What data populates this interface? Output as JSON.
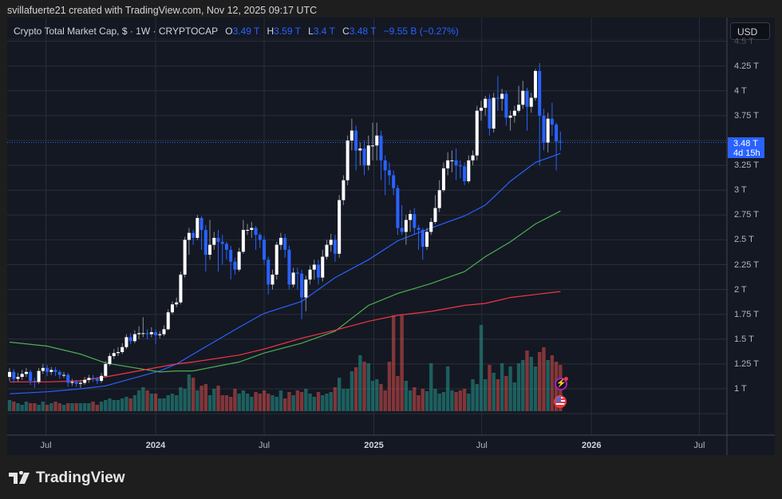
{
  "credit": "svillafuerte21 created with TradingView.com, Nov 12, 2025 09:17 UTC",
  "legend": {
    "symbol": "Crypto Total Market Cap, $ · 1W · CRYPTOCAP",
    "o_label": "O",
    "o": "3.49 T",
    "h_label": "H",
    "h": "3.59 T",
    "l_label": "L",
    "l": "3.4 T",
    "c_label": "C",
    "c": "3.48 T",
    "change": "−9.55 B (−0.27%)"
  },
  "currency_button": "USD",
  "price_tag": {
    "price": "3.48 T",
    "countdown": "4d 15h"
  },
  "logo": "TradingView",
  "colors": {
    "up_body": "#ffffff",
    "up_wick": "#8a8d96",
    "down": "#2962ff",
    "vol_up": "#26a69a",
    "vol_down": "#ef5350",
    "ma_blue": "#2962ff",
    "ma_green": "#4caf50",
    "ma_red": "#f23645",
    "background": "#141823",
    "grid": "#2a2e39"
  },
  "event_icons": [
    "lightning-event-icon",
    "us-flag-event-icon"
  ],
  "chart_data": {
    "type": "candlestick",
    "interval": "1W",
    "first_candle_date": "2023-05-01",
    "ylim": [
      0.6,
      4.6
    ],
    "y_unit": "T",
    "grid": true,
    "yticks": [
      "4.5 T",
      "4.25 T",
      "4 T",
      "3.75 T",
      "3.25 T",
      "3 T",
      "2.75 T",
      "2.5 T",
      "2.25 T",
      "2 T",
      "1.75 T",
      "1.5 T",
      "1.25 T",
      "1 T"
    ],
    "ytick_values": [
      4.5,
      4.25,
      4,
      3.75,
      3.25,
      3,
      2.75,
      2.5,
      2.25,
      2,
      1.75,
      1.5,
      1.25,
      1
    ],
    "xticks": [
      {
        "label": "Jul",
        "date": "2023-07-01",
        "year": false
      },
      {
        "label": "2024",
        "date": "2024-01-01",
        "year": true
      },
      {
        "label": "Jul",
        "date": "2024-07-01",
        "year": false
      },
      {
        "label": "2025",
        "date": "2025-01-01",
        "year": true
      },
      {
        "label": "Jul",
        "date": "2025-07-01",
        "year": false
      },
      {
        "label": "2026",
        "date": "2026-01-01",
        "year": true
      },
      {
        "label": "Jul",
        "date": "2026-07-01",
        "year": false
      }
    ],
    "open": [
      1.12,
      1.17,
      1.1,
      1.12,
      1.15,
      1.17,
      1.08,
      1.07,
      1.18,
      1.21,
      1.17,
      1.19,
      1.17,
      1.14,
      1.14,
      1.06,
      1.07,
      1.05,
      1.06,
      1.09,
      1.11,
      1.1,
      1.08,
      1.13,
      1.25,
      1.33,
      1.36,
      1.37,
      1.42,
      1.52,
      1.48,
      1.55,
      1.56,
      1.56,
      1.55,
      1.57,
      1.54,
      1.55,
      1.6,
      1.77,
      1.85,
      1.87,
      2.15,
      2.5,
      2.57,
      2.52,
      2.72,
      2.6,
      2.35,
      2.45,
      2.52,
      2.48,
      2.46,
      2.4,
      2.28,
      2.2,
      2.38,
      2.6,
      2.6,
      2.62,
      2.55,
      2.5,
      2.3,
      2.05,
      2.15,
      2.45,
      2.52,
      2.4,
      2.05,
      2.17,
      2.16,
      1.92,
      2.1,
      2.2,
      2.25,
      2.12,
      2.33,
      2.45,
      2.5,
      2.36,
      2.9,
      3.1,
      3.5,
      3.6,
      3.4,
      3.42,
      3.25,
      3.45,
      3.45,
      3.55,
      3.3,
      3.2,
      3.15,
      3.02,
      2.62,
      2.58,
      2.7,
      2.76,
      2.62,
      2.6,
      2.43,
      2.58,
      2.68,
      2.82,
      3.0,
      3.22,
      3.3,
      3.3,
      3.25,
      3.24,
      3.09,
      3.3,
      3.35,
      3.8,
      3.83,
      3.92,
      3.62,
      3.93,
      3.92,
      3.97,
      3.73,
      3.75,
      3.8,
      3.86,
      4.0,
      3.84,
      3.93,
      4.2,
      3.75,
      3.48,
      3.72,
      3.66,
      3.49
    ],
    "high": [
      1.21,
      1.2,
      1.16,
      1.19,
      1.21,
      1.19,
      1.11,
      1.21,
      1.25,
      1.24,
      1.22,
      1.22,
      1.19,
      1.17,
      1.16,
      1.1,
      1.09,
      1.09,
      1.12,
      1.14,
      1.14,
      1.12,
      1.16,
      1.28,
      1.36,
      1.4,
      1.42,
      1.46,
      1.55,
      1.56,
      1.59,
      1.63,
      1.72,
      1.6,
      1.62,
      1.6,
      1.58,
      1.64,
      1.8,
      1.88,
      1.92,
      2.18,
      2.53,
      2.62,
      2.6,
      2.75,
      2.74,
      2.65,
      2.7,
      2.58,
      2.6,
      2.55,
      2.48,
      2.44,
      2.32,
      2.42,
      2.7,
      2.66,
      2.68,
      2.64,
      2.57,
      2.54,
      2.33,
      2.2,
      2.48,
      2.57,
      2.56,
      2.44,
      2.22,
      2.22,
      2.2,
      2.14,
      2.24,
      2.3,
      2.3,
      2.4,
      2.5,
      2.56,
      2.55,
      2.95,
      3.15,
      3.55,
      3.72,
      3.65,
      3.48,
      3.5,
      3.55,
      3.68,
      3.68,
      3.6,
      3.35,
      3.28,
      3.2,
      3.05,
      2.85,
      2.75,
      2.8,
      2.82,
      2.65,
      2.62,
      2.62,
      2.72,
      2.95,
      3.1,
      3.28,
      3.38,
      3.4,
      3.42,
      3.3,
      3.28,
      3.35,
      3.4,
      3.85,
      3.9,
      3.95,
      3.97,
      3.98,
      4.15,
      4.02,
      4.0,
      3.8,
      3.85,
      4.05,
      4.1,
      4.03,
      3.98,
      4.22,
      4.28,
      3.82,
      3.78,
      3.88,
      3.68,
      3.59
    ],
    "low": [
      1.08,
      1.06,
      1.07,
      1.09,
      1.12,
      1.04,
      1.01,
      1.05,
      1.15,
      1.13,
      1.14,
      1.13,
      1.1,
      1.11,
      1.02,
      1.03,
      1.02,
      1.01,
      1.04,
      1.06,
      1.07,
      1.05,
      1.06,
      1.12,
      1.23,
      1.3,
      1.33,
      1.35,
      1.4,
      1.45,
      1.46,
      1.5,
      1.52,
      1.5,
      1.52,
      1.45,
      1.51,
      1.53,
      1.59,
      1.75,
      1.82,
      1.85,
      2.12,
      2.35,
      2.45,
      2.5,
      2.4,
      2.18,
      2.3,
      2.4,
      2.18,
      2.25,
      2.3,
      2.1,
      2.15,
      2.18,
      2.36,
      2.55,
      2.52,
      2.4,
      2.42,
      2.25,
      1.95,
      2.0,
      2.1,
      2.4,
      2.32,
      2.0,
      2.02,
      2.0,
      1.7,
      1.78,
      2.05,
      2.1,
      2.05,
      2.08,
      2.3,
      2.38,
      2.28,
      2.32,
      2.85,
      3.05,
      3.4,
      3.2,
      3.25,
      3.15,
      3.2,
      3.3,
      3.3,
      3.1,
      2.95,
      3.05,
      2.95,
      2.55,
      2.55,
      2.45,
      2.58,
      2.55,
      2.4,
      2.3,
      2.4,
      2.55,
      2.66,
      2.78,
      2.98,
      3.15,
      3.18,
      3.1,
      3.12,
      3.05,
      3.07,
      3.25,
      3.3,
      3.7,
      3.75,
      3.55,
      3.58,
      3.8,
      3.8,
      3.65,
      3.6,
      3.68,
      3.78,
      3.82,
      3.6,
      3.78,
      3.9,
      3.25,
      3.4,
      3.38,
      3.55,
      3.2,
      3.4
    ],
    "close": [
      1.17,
      1.1,
      1.12,
      1.15,
      1.17,
      1.08,
      1.07,
      1.18,
      1.21,
      1.17,
      1.19,
      1.17,
      1.14,
      1.14,
      1.06,
      1.07,
      1.05,
      1.06,
      1.09,
      1.11,
      1.1,
      1.08,
      1.13,
      1.25,
      1.33,
      1.36,
      1.37,
      1.42,
      1.52,
      1.48,
      1.55,
      1.56,
      1.56,
      1.55,
      1.57,
      1.54,
      1.55,
      1.6,
      1.77,
      1.85,
      1.87,
      2.15,
      2.5,
      2.57,
      2.52,
      2.72,
      2.6,
      2.35,
      2.45,
      2.52,
      2.48,
      2.46,
      2.4,
      2.28,
      2.2,
      2.38,
      2.6,
      2.6,
      2.62,
      2.55,
      2.5,
      2.3,
      2.05,
      2.15,
      2.45,
      2.52,
      2.4,
      2.05,
      2.17,
      2.16,
      1.92,
      2.1,
      2.2,
      2.25,
      2.12,
      2.33,
      2.45,
      2.5,
      2.36,
      2.9,
      3.1,
      3.5,
      3.6,
      3.4,
      3.42,
      3.25,
      3.45,
      3.45,
      3.55,
      3.3,
      3.2,
      3.15,
      3.02,
      2.62,
      2.58,
      2.7,
      2.76,
      2.62,
      2.6,
      2.43,
      2.58,
      2.68,
      2.82,
      3.0,
      3.22,
      3.3,
      3.3,
      3.25,
      3.24,
      3.09,
      3.3,
      3.35,
      3.8,
      3.83,
      3.92,
      3.62,
      3.93,
      3.92,
      3.97,
      3.73,
      3.75,
      3.8,
      3.86,
      4.0,
      3.84,
      3.93,
      4.2,
      3.75,
      3.48,
      3.72,
      3.66,
      3.49,
      3.48
    ],
    "volume_relative": [
      14,
      12,
      10,
      8,
      12,
      10,
      10,
      8,
      12,
      8,
      10,
      12,
      10,
      8,
      10,
      10,
      10,
      10,
      10,
      10,
      12,
      8,
      12,
      14,
      16,
      14,
      14,
      16,
      18,
      16,
      20,
      26,
      30,
      26,
      22,
      22,
      16,
      16,
      20,
      22,
      20,
      30,
      28,
      46,
      42,
      26,
      32,
      34,
      20,
      28,
      32,
      20,
      20,
      18,
      28,
      22,
      26,
      22,
      18,
      24,
      22,
      26,
      22,
      20,
      18,
      26,
      16,
      24,
      20,
      26,
      24,
      28,
      22,
      18,
      24,
      20,
      22,
      24,
      30,
      42,
      28,
      28,
      50,
      55,
      70,
      62,
      60,
      38,
      40,
      34,
      26,
      62,
      120,
      44,
      120,
      38,
      26,
      30,
      20,
      28,
      25,
      60,
      28,
      22,
      24,
      56,
      26,
      24,
      26,
      28,
      22,
      40,
      34,
      108,
      40,
      58,
      48,
      40,
      60,
      44,
      56,
      36,
      60,
      64,
      76,
      68,
      56,
      74,
      80,
      64,
      70,
      62,
      58
    ],
    "moving_averages": {
      "dates": [
        "2023-05-01",
        "2023-07-03",
        "2023-08-28",
        "2023-10-09",
        "2024-01-08",
        "2024-02-05",
        "2024-03-04",
        "2024-05-20",
        "2024-07-01",
        "2024-09-02",
        "2024-10-28",
        "2024-12-23",
        "2025-02-10",
        "2025-04-07",
        "2025-06-02",
        "2025-07-07",
        "2025-08-18",
        "2025-09-29",
        "2025-11-10"
      ],
      "series": [
        {
          "color": "#2962ff",
          "values": [
            0.95,
            0.97,
            1.0,
            1.03,
            1.18,
            1.25,
            1.35,
            1.62,
            1.76,
            1.88,
            2.12,
            2.3,
            2.49,
            2.62,
            2.74,
            2.85,
            3.09,
            3.28,
            3.37
          ]
        },
        {
          "color": "#4caf50",
          "values": [
            1.47,
            1.43,
            1.35,
            1.26,
            1.17,
            1.18,
            1.18,
            1.27,
            1.36,
            1.46,
            1.58,
            1.84,
            1.96,
            2.06,
            2.18,
            2.33,
            2.48,
            2.66,
            2.79
          ]
        },
        {
          "color": "#f23645",
          "values": [
            1.07,
            1.07,
            1.08,
            1.12,
            1.22,
            1.25,
            1.27,
            1.34,
            1.4,
            1.51,
            1.59,
            1.68,
            1.74,
            1.78,
            1.84,
            1.86,
            1.92,
            1.95,
            1.98
          ]
        }
      ]
    }
  }
}
